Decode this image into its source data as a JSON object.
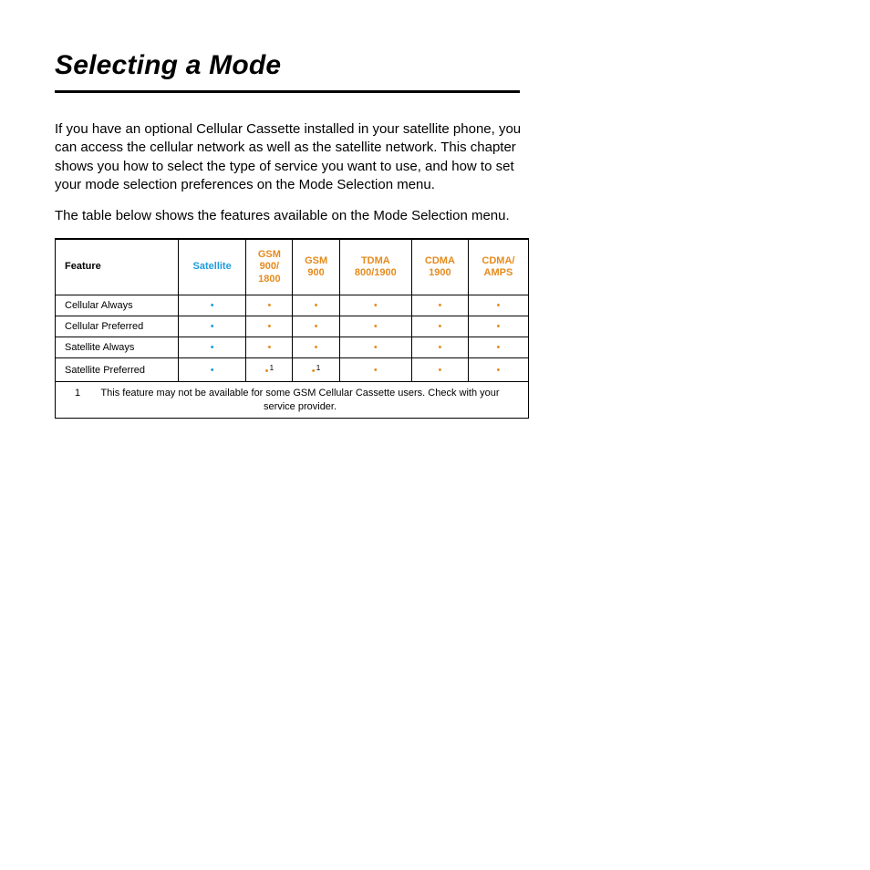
{
  "colors": {
    "satellite": "#1f9bdc",
    "cellular": "#e58b1e",
    "text": "#000000",
    "background": "#ffffff"
  },
  "title": "Selecting a Mode",
  "intro": "If you have an optional Cellular Cassette installed in your satellite phone, you can access the cellular network as well as the satellite network. This chapter shows you how to select the type of service you want to use, and how to set your mode selection preferences on the Mode Selection menu.",
  "lead": "The table below shows the features available on the Mode Selection menu.",
  "table": {
    "feature_header": "Feature",
    "columns": [
      {
        "label": "Satellite",
        "type": "sat"
      },
      {
        "label": "GSM 900/ 1800",
        "type": "cell"
      },
      {
        "label": "GSM 900",
        "type": "cell"
      },
      {
        "label": "TDMA 800/1900",
        "type": "cell"
      },
      {
        "label": "CDMA 1900",
        "type": "cell"
      },
      {
        "label": "CDMA/ AMPS",
        "type": "cell"
      }
    ],
    "rows": [
      {
        "feature": "Cellular Always",
        "cells": [
          {
            "v": true,
            "fn": null
          },
          {
            "v": true,
            "fn": null
          },
          {
            "v": true,
            "fn": null
          },
          {
            "v": true,
            "fn": null
          },
          {
            "v": true,
            "fn": null
          },
          {
            "v": true,
            "fn": null
          }
        ]
      },
      {
        "feature": "Cellular Preferred",
        "cells": [
          {
            "v": true,
            "fn": null
          },
          {
            "v": true,
            "fn": null
          },
          {
            "v": true,
            "fn": null
          },
          {
            "v": true,
            "fn": null
          },
          {
            "v": true,
            "fn": null
          },
          {
            "v": true,
            "fn": null
          }
        ]
      },
      {
        "feature": "Satellite Always",
        "cells": [
          {
            "v": true,
            "fn": null
          },
          {
            "v": true,
            "fn": null
          },
          {
            "v": true,
            "fn": null
          },
          {
            "v": true,
            "fn": null
          },
          {
            "v": true,
            "fn": null
          },
          {
            "v": true,
            "fn": null
          }
        ]
      },
      {
        "feature": "Satellite Preferred",
        "cells": [
          {
            "v": true,
            "fn": null
          },
          {
            "v": true,
            "fn": "1"
          },
          {
            "v": true,
            "fn": "1"
          },
          {
            "v": true,
            "fn": null
          },
          {
            "v": true,
            "fn": null
          },
          {
            "v": true,
            "fn": null
          }
        ]
      }
    ],
    "footnote": {
      "num": "1",
      "text": "This feature may not be available for some GSM Cellular Cassette users. Check with your service provider."
    }
  }
}
